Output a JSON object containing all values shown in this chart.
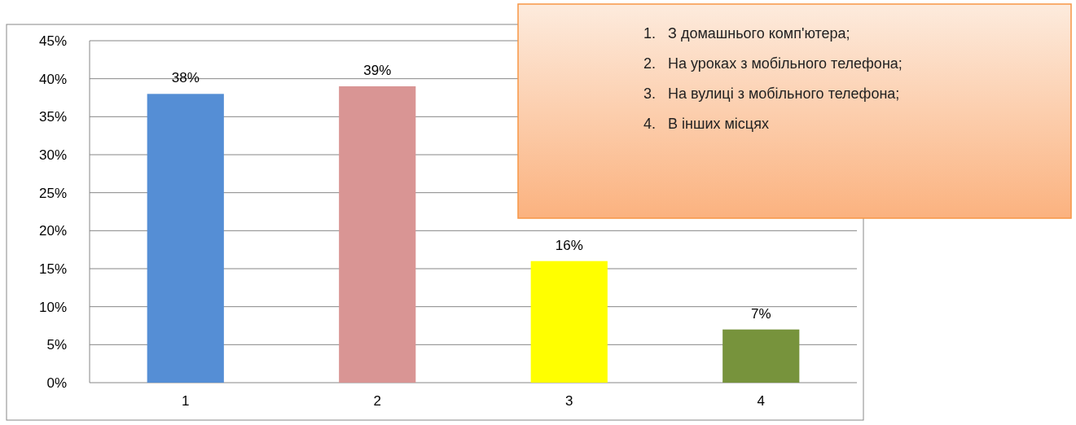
{
  "chart_data": {
    "type": "bar",
    "categories": [
      "1",
      "2",
      "3",
      "4"
    ],
    "values": [
      38,
      39,
      16,
      7
    ],
    "colors": [
      "#558ed5",
      "#d99594",
      "#ffff00",
      "#77933c"
    ],
    "value_labels": [
      "38%",
      "39%",
      "16%",
      "7%"
    ],
    "ylim": [
      0,
      45
    ],
    "yticks": [
      {
        "value": 0,
        "label": "0%"
      },
      {
        "value": 5,
        "label": "5%"
      },
      {
        "value": 10,
        "label": "10%"
      },
      {
        "value": 15,
        "label": "15%"
      },
      {
        "value": 20,
        "label": "20%"
      },
      {
        "value": 25,
        "label": "25%"
      },
      {
        "value": 30,
        "label": "30%"
      },
      {
        "value": 35,
        "label": "35%"
      },
      {
        "value": 40,
        "label": "40%"
      },
      {
        "value": 45,
        "label": "45%"
      }
    ],
    "grid": "y",
    "annotations": [
      "1.   З домашнього комп'ютера;",
      "2.   На уроках з мобільного телефона;",
      "3.   На вулиці з мобільного телефона;",
      "4.   В інших місцях"
    ]
  }
}
